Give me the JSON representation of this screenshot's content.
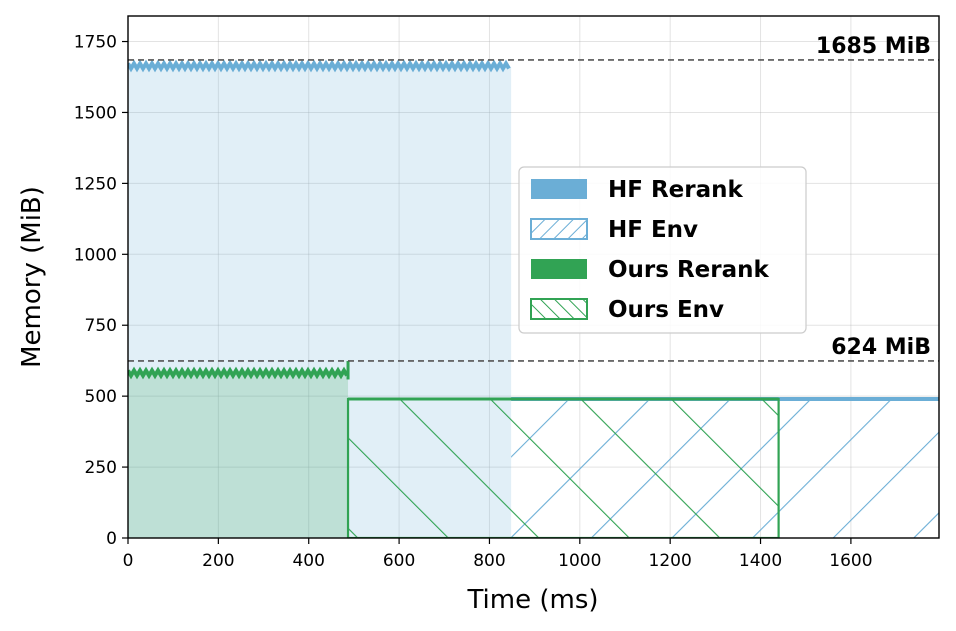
{
  "chart_data": {
    "type": "area",
    "xlabel": "Time (ms)",
    "ylabel": "Memory (MiB)",
    "xlim": [
      0,
      1795
    ],
    "ylim": [
      0,
      1840
    ],
    "xticks": [
      0,
      200,
      400,
      600,
      800,
      1000,
      1200,
      1400,
      1600
    ],
    "yticks": [
      0,
      250,
      500,
      750,
      1000,
      1250,
      1500,
      1750
    ],
    "grid": true,
    "legend_position": "center-right",
    "reference_lines": [
      {
        "y": 1685,
        "label": "1685 MiB"
      },
      {
        "y": 624,
        "label": "624 MiB"
      }
    ],
    "series": [
      {
        "name": "HF Rerank",
        "kind": "filled",
        "color": "#6baed6",
        "x_start": 0,
        "x_end": 848,
        "y": 1660,
        "peak": 1685
      },
      {
        "name": "HF Env",
        "kind": "hatched",
        "color": "#6baed6",
        "x_start": 848,
        "x_end": 1795,
        "y": 490
      },
      {
        "name": "Ours Rerank",
        "kind": "filled",
        "color": "#31a354",
        "x_start": 0,
        "x_end": 487,
        "y": 580,
        "peak": 624
      },
      {
        "name": "Ours Env",
        "kind": "hatched",
        "color": "#31a354",
        "x_start": 487,
        "x_end": 1440,
        "y": 490
      }
    ]
  }
}
